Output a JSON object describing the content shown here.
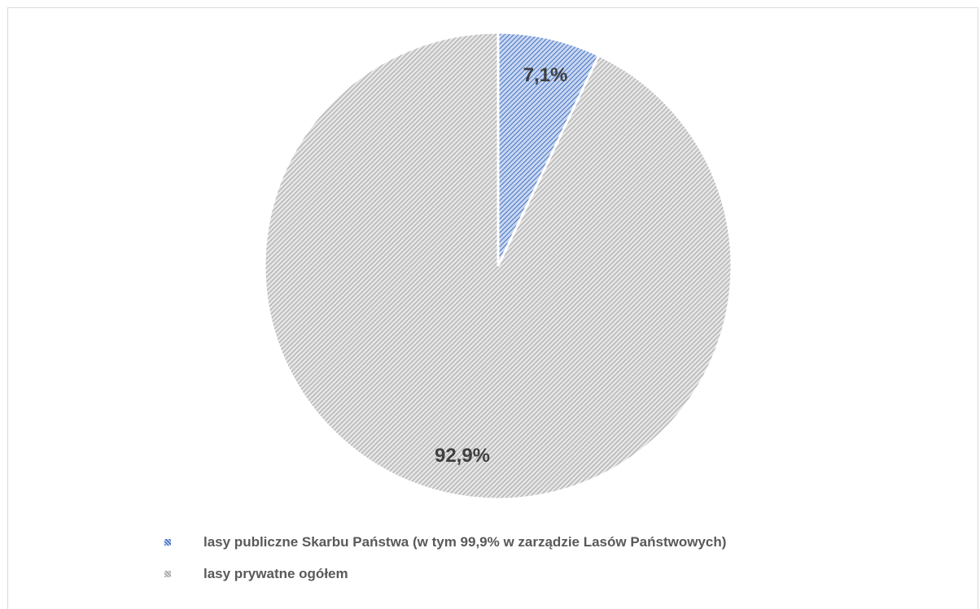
{
  "chart_data": {
    "type": "pie",
    "title": "",
    "slices": [
      {
        "label": "lasy publiczne Skarbu Państwa (w tym 99,9% w zarządzie Lasów Państwowych)",
        "value": 7.1,
        "data_label": "7,1%",
        "color": "#4472c4",
        "fill_color": "#c9d7f0",
        "pattern": "diagonal-stripes"
      },
      {
        "label": "lasy prywatne ogółem",
        "value": 92.9,
        "data_label": "92,9%",
        "color": "#a6a6a6",
        "fill_color": "#e4e4e4",
        "pattern": "diagonal-stripes"
      }
    ],
    "start_angle": "12 o'clock",
    "direction": "clockwise",
    "legend_position": "bottom"
  }
}
